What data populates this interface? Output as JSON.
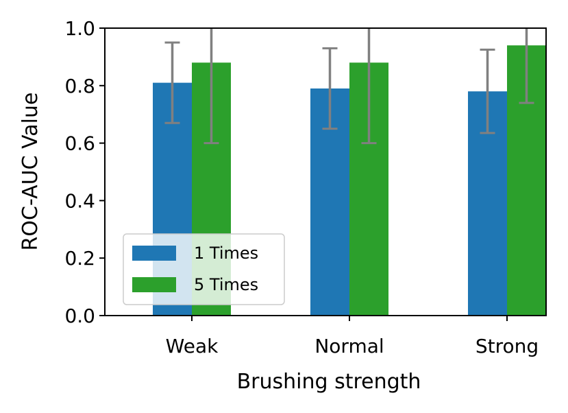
{
  "chart_data": {
    "type": "bar",
    "title": "",
    "xlabel": "Brushing strength",
    "ylabel": "ROC-AUC Value",
    "categories": [
      "Weak",
      "Normal",
      "Strong"
    ],
    "ylim": [
      0.0,
      1.0
    ],
    "yticks": [
      "0.0",
      "0.2",
      "0.4",
      "0.6",
      "0.8",
      "1.0"
    ],
    "grid": false,
    "legend_position": "lower-left",
    "series": [
      {
        "name": "1 Times",
        "color": "#1f77b4",
        "values": [
          0.81,
          0.79,
          0.78
        ],
        "errors": [
          0.14,
          0.14,
          0.145
        ]
      },
      {
        "name": "5 Times",
        "color": "#2ca02c",
        "values": [
          0.88,
          0.88,
          0.94
        ],
        "errors": [
          0.28,
          0.28,
          0.2
        ]
      }
    ],
    "error_bar_color": "#808080"
  }
}
